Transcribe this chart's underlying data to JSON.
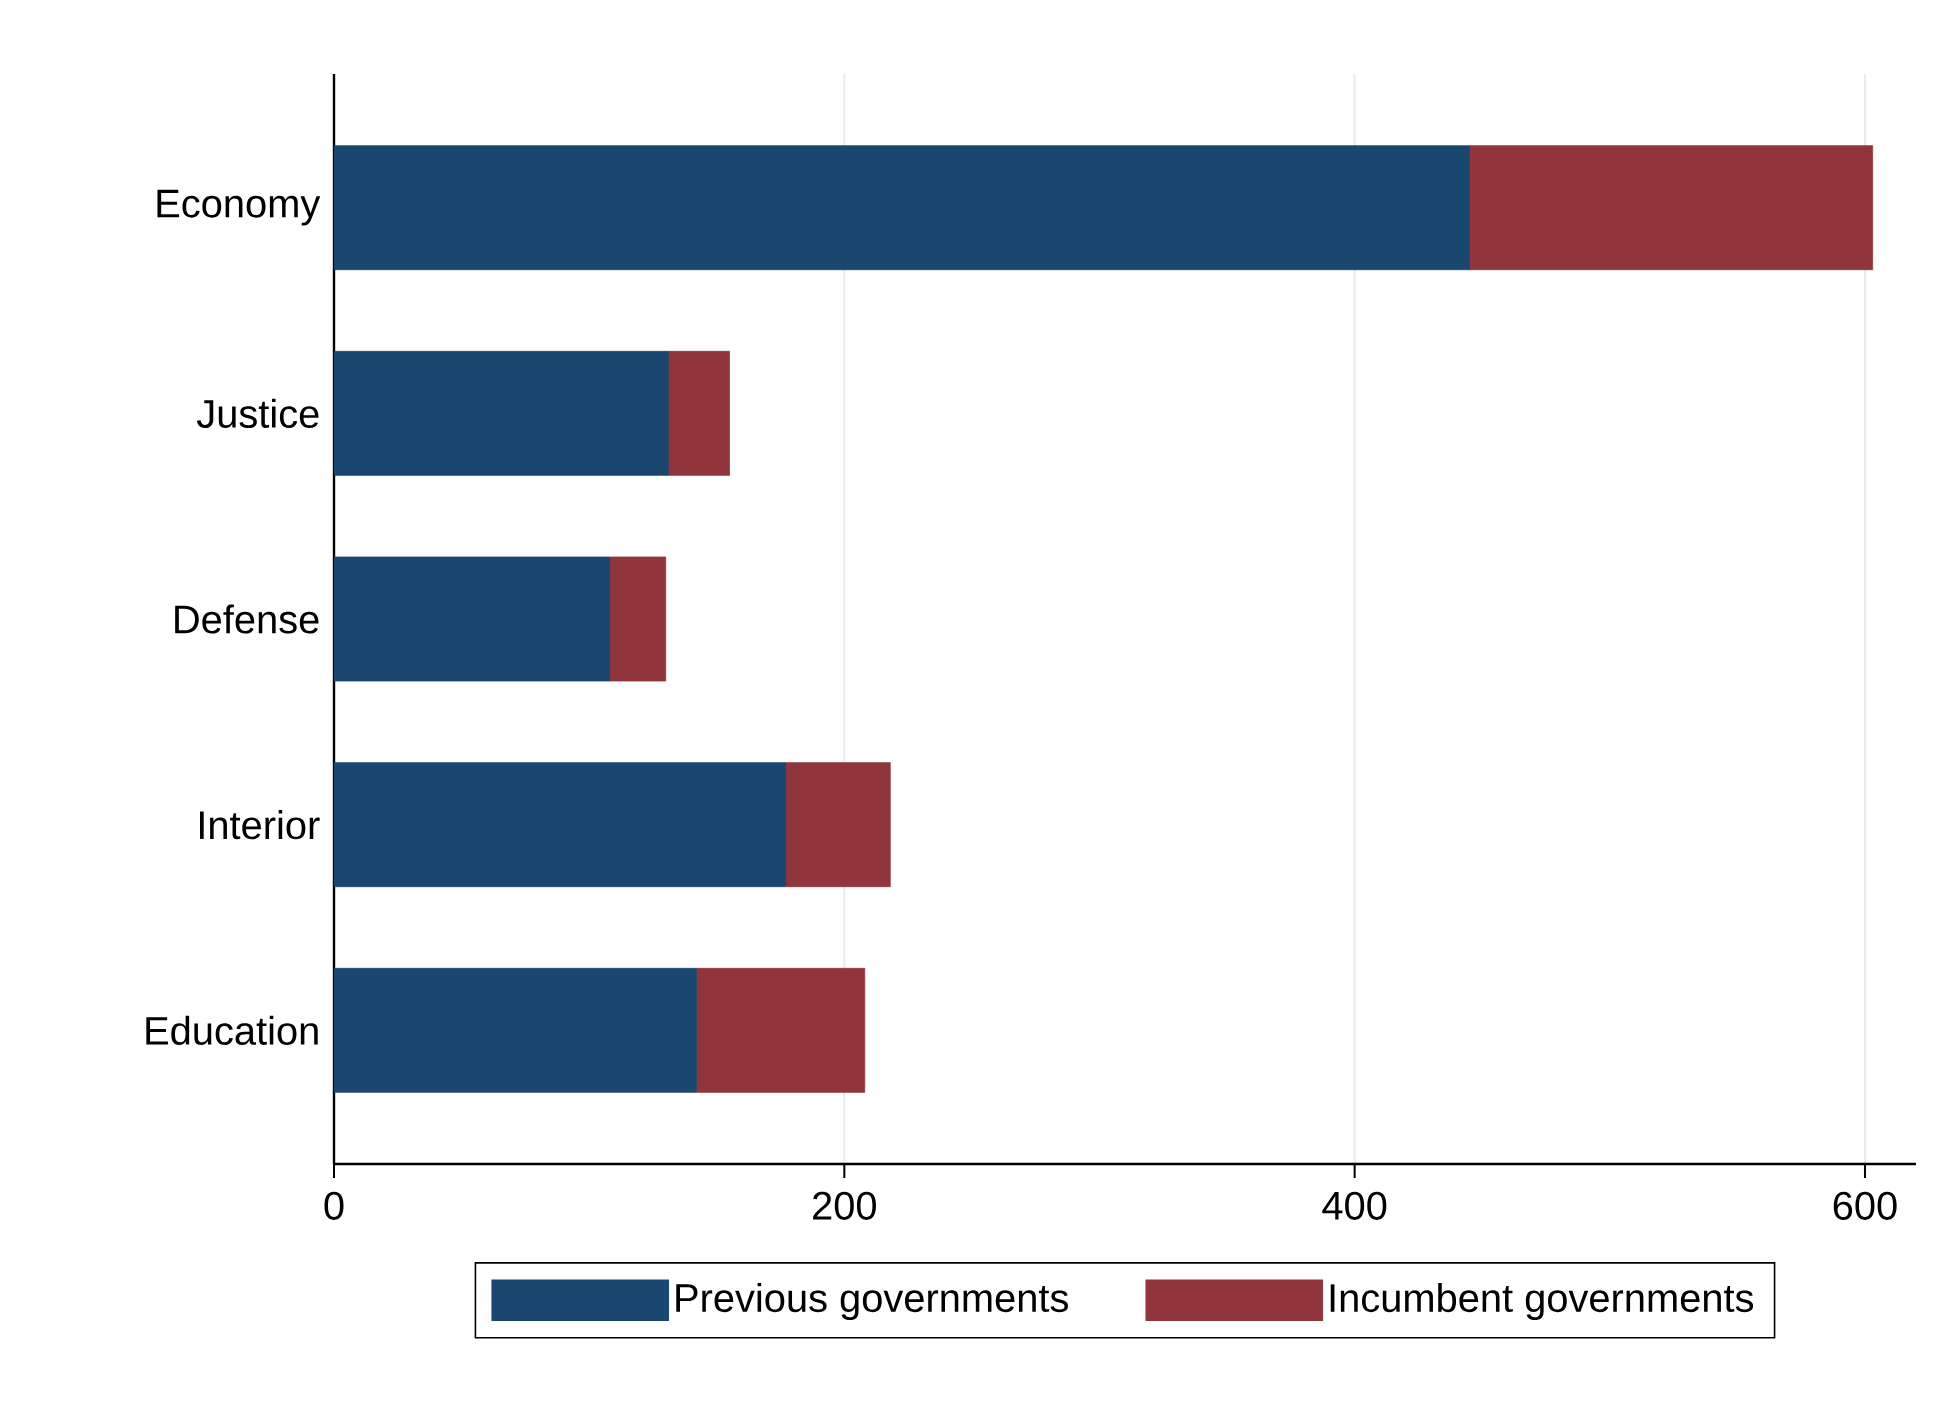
{
  "chart_data": {
    "type": "bar",
    "orientation": "horizontal",
    "stacked": true,
    "categories": [
      "Economy",
      "Justice",
      "Defense",
      "Interior",
      "Education"
    ],
    "series": [
      {
        "name": "Previous governments",
        "color": "#1a476f",
        "values": [
          445,
          131,
          108,
          177,
          142
        ]
      },
      {
        "name": "Incumbent governments",
        "color": "#90353b",
        "values": [
          158,
          24,
          22,
          41,
          66
        ]
      }
    ],
    "xlim": [
      0,
      620
    ],
    "xticks": [
      0,
      200,
      400,
      600
    ],
    "grid": "x",
    "legend": "bottom"
  }
}
